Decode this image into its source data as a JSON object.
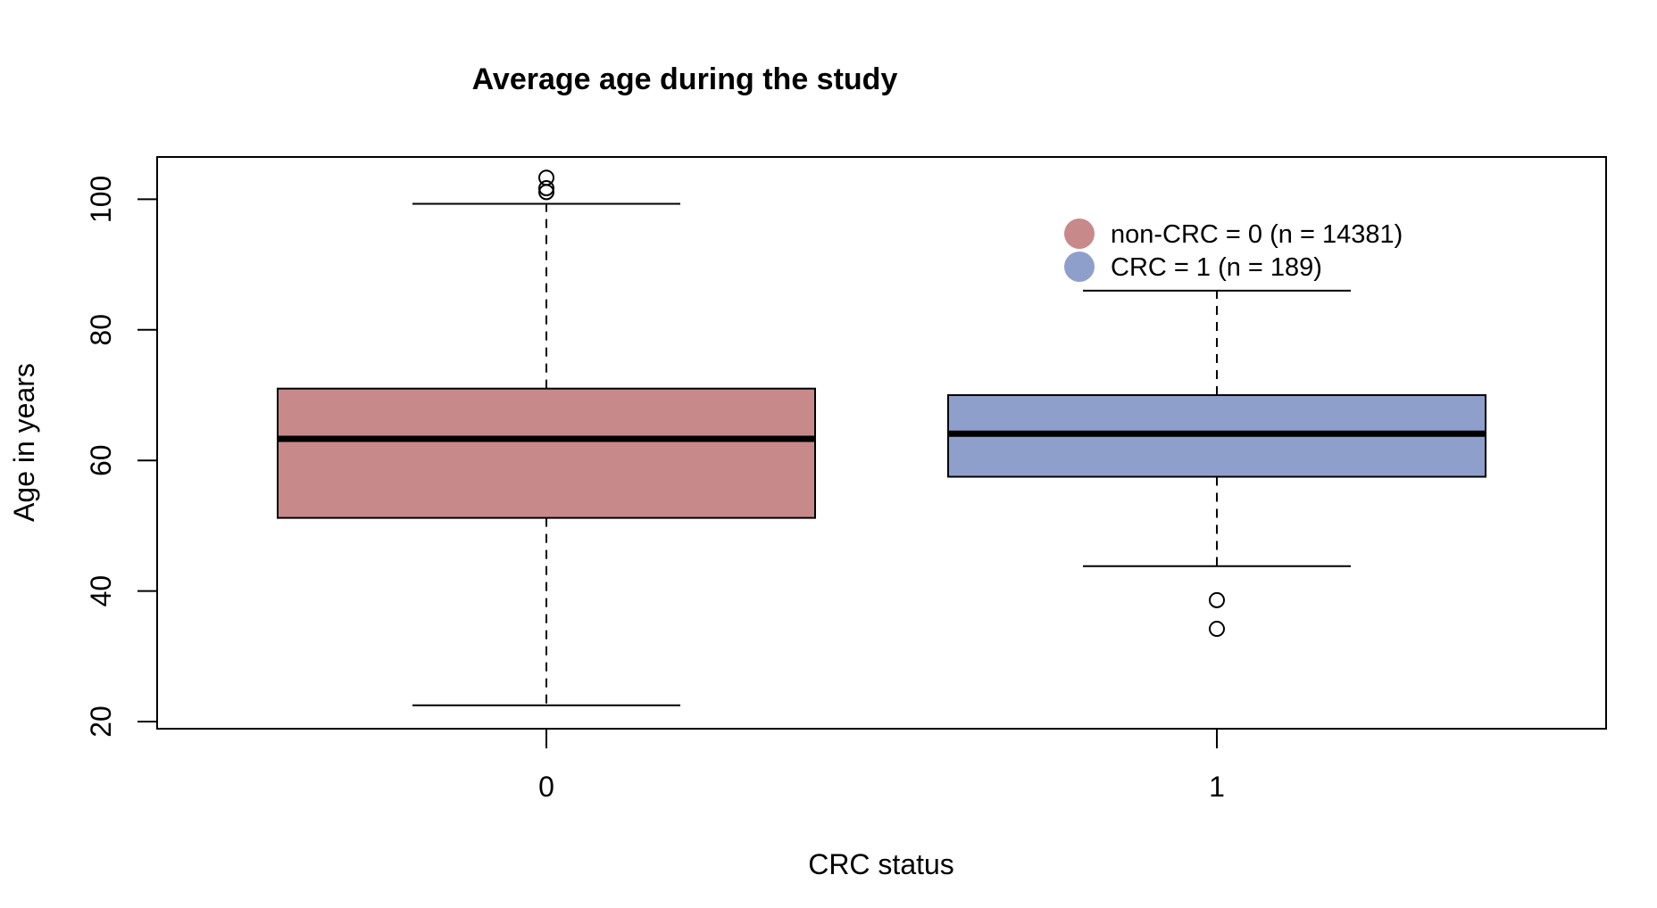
{
  "chart_data": {
    "type": "boxplot",
    "title": "Average age during the study",
    "xlabel": "CRC status",
    "ylabel": "Age in years",
    "ylim": [
      19,
      106
    ],
    "yticks": [
      20,
      40,
      60,
      80,
      100
    ],
    "categories": [
      "0",
      "1"
    ],
    "grid": false,
    "legend_position": "top-right",
    "series": [
      {
        "name": "non-CRC = 0 (n = 14381)",
        "category": "0",
        "color": "#c8898a",
        "whisker_low": 22.5,
        "q1": 51.2,
        "median": 63.3,
        "q3": 71.0,
        "whisker_high": 99.3,
        "outliers": [
          103.3,
          101.7,
          101.1
        ]
      },
      {
        "name": "CRC = 1 (n = 189)",
        "category": "1",
        "color": "#8f9fcc",
        "whisker_low": 43.8,
        "q1": 57.5,
        "median": 64.1,
        "q3": 70.0,
        "whisker_high": 86.0,
        "outliers": [
          38.6,
          34.2
        ]
      }
    ]
  }
}
